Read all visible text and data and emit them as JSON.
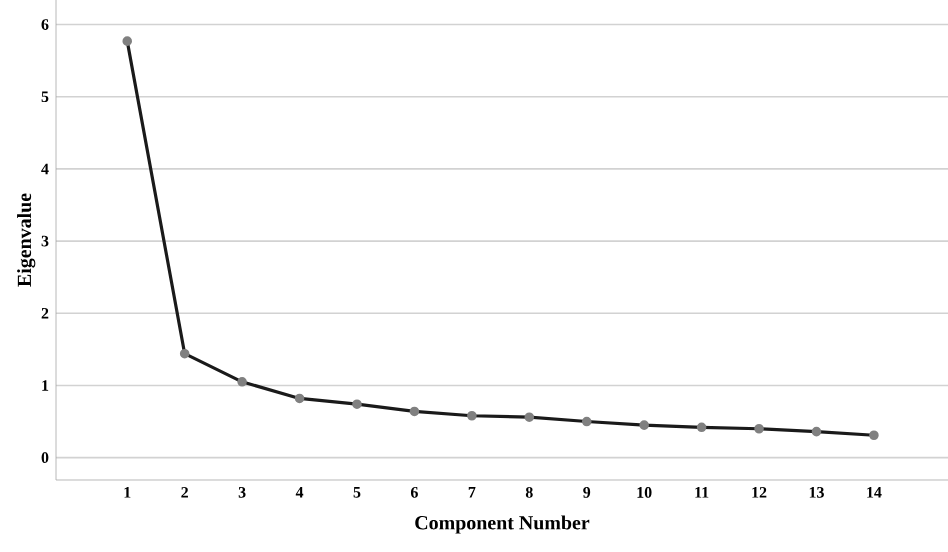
{
  "chart_data": {
    "type": "line",
    "xlabel": "Component Number",
    "ylabel": "Eigenvalue",
    "categories": [
      "1",
      "2",
      "3",
      "4",
      "5",
      "6",
      "7",
      "8",
      "9",
      "10",
      "11",
      "12",
      "13",
      "14"
    ],
    "values": [
      5.77,
      1.44,
      1.05,
      0.82,
      0.74,
      0.64,
      0.58,
      0.56,
      0.5,
      0.45,
      0.42,
      0.4,
      0.36,
      0.31
    ],
    "color": "#1a1a1a",
    "marker": "circle",
    "line_style": "solid",
    "grid": "y",
    "ylim": [
      -0.31,
      6.34
    ],
    "yticks": [
      0,
      1,
      2,
      3,
      4,
      5,
      6
    ]
  }
}
